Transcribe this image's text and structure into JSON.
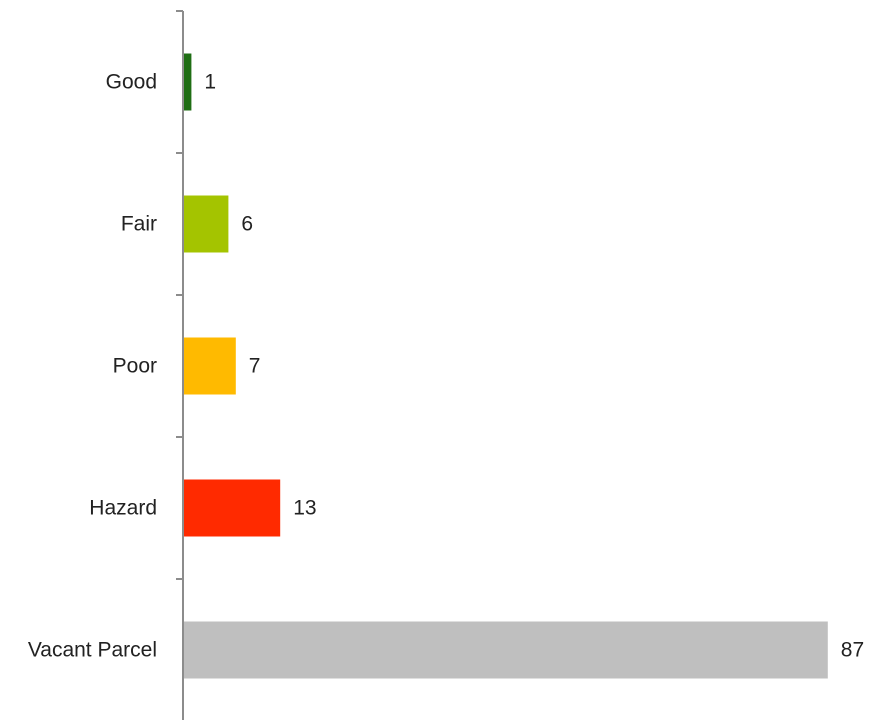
{
  "chart_data": {
    "type": "bar",
    "orientation": "horizontal",
    "title": "",
    "xlabel": "",
    "ylabel": "",
    "categories": [
      "Good",
      "Fair",
      "Poor",
      "Hazard",
      "Vacant Parcel"
    ],
    "values": [
      1,
      6,
      7,
      13,
      87
    ],
    "colors": [
      "#1f6e14",
      "#a4c400",
      "#ffba00",
      "#ff2a00",
      "#bfbfbf"
    ],
    "xlim": [
      0,
      87
    ],
    "grid": false,
    "legend": "none",
    "data_labels": true
  }
}
